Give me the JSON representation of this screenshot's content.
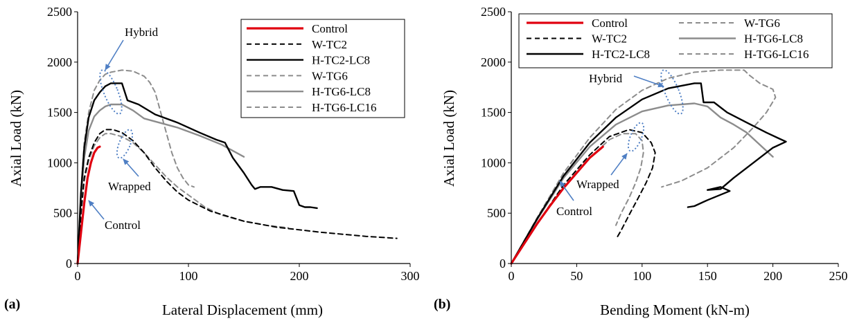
{
  "chart_data": [
    {
      "type": "line",
      "panel_label": "(a)",
      "xlabel": "Lateral Displacement (mm)",
      "ylabel": "Axial Load (kN)",
      "xlim": [
        0,
        300
      ],
      "ylim": [
        0,
        2500
      ],
      "xticks": [
        0,
        100,
        200,
        300
      ],
      "yticks": [
        0,
        500,
        1000,
        1500,
        2000,
        2500
      ],
      "grid": false,
      "legend_placement": "top-right",
      "series": [
        {
          "name": "Control",
          "color": "#e0000f",
          "dash": "solid",
          "width": 3.2,
          "points": [
            [
              0,
              0
            ],
            [
              3,
              300
            ],
            [
              6,
              600
            ],
            [
              9,
              850
            ],
            [
              12,
              1000
            ],
            [
              15,
              1100
            ],
            [
              18,
              1150
            ],
            [
              20,
              1160
            ]
          ]
        },
        {
          "name": "W-TC2",
          "color": "#000000",
          "dash": "dashed",
          "width": 2,
          "points": [
            [
              0,
              0
            ],
            [
              3,
              500
            ],
            [
              6,
              850
            ],
            [
              10,
              1050
            ],
            [
              15,
              1200
            ],
            [
              20,
              1290
            ],
            [
              25,
              1330
            ],
            [
              32,
              1330
            ],
            [
              40,
              1300
            ],
            [
              50,
              1220
            ],
            [
              60,
              1100
            ],
            [
              70,
              950
            ],
            [
              80,
              820
            ],
            [
              90,
              710
            ],
            [
              100,
              630
            ],
            [
              120,
              520
            ],
            [
              150,
              420
            ],
            [
              180,
              360
            ],
            [
              220,
              310
            ],
            [
              260,
              270
            ],
            [
              288,
              250
            ]
          ]
        },
        {
          "name": "H-TC2-LC8",
          "color": "#000000",
          "dash": "solid",
          "width": 2.4,
          "points": [
            [
              0,
              0
            ],
            [
              3,
              700
            ],
            [
              6,
              1150
            ],
            [
              10,
              1450
            ],
            [
              15,
              1620
            ],
            [
              20,
              1700
            ],
            [
              25,
              1760
            ],
            [
              30,
              1790
            ],
            [
              40,
              1790
            ],
            [
              45,
              1620
            ],
            [
              55,
              1580
            ],
            [
              70,
              1480
            ],
            [
              90,
              1400
            ],
            [
              110,
              1300
            ],
            [
              125,
              1230
            ],
            [
              133,
              1200
            ],
            [
              140,
              1050
            ],
            [
              150,
              900
            ],
            [
              157,
              780
            ],
            [
              160,
              740
            ],
            [
              165,
              760
            ],
            [
              175,
              760
            ],
            [
              185,
              730
            ],
            [
              195,
              720
            ],
            [
              200,
              580
            ],
            [
              205,
              560
            ],
            [
              210,
              560
            ],
            [
              216,
              550
            ]
          ]
        },
        {
          "name": "W-TG6",
          "color": "#8c8c8c",
          "dash": "dashed",
          "width": 2,
          "points": [
            [
              0,
              0
            ],
            [
              3,
              480
            ],
            [
              6,
              820
            ],
            [
              10,
              1020
            ],
            [
              15,
              1170
            ],
            [
              20,
              1250
            ],
            [
              25,
              1290
            ],
            [
              30,
              1290
            ],
            [
              40,
              1260
            ],
            [
              50,
              1200
            ],
            [
              60,
              1100
            ],
            [
              70,
              980
            ],
            [
              80,
              860
            ],
            [
              90,
              760
            ],
            [
              100,
              680
            ],
            [
              115,
              560
            ],
            [
              130,
              480
            ],
            [
              150,
              420
            ],
            [
              170,
              380
            ],
            [
              190,
              355
            ]
          ]
        },
        {
          "name": "H-TG6-LC8",
          "color": "#8c8c8c",
          "dash": "solid",
          "width": 2.4,
          "points": [
            [
              0,
              0
            ],
            [
              3,
              650
            ],
            [
              6,
              1050
            ],
            [
              10,
              1320
            ],
            [
              15,
              1460
            ],
            [
              20,
              1520
            ],
            [
              25,
              1560
            ],
            [
              30,
              1580
            ],
            [
              40,
              1580
            ],
            [
              50,
              1520
            ],
            [
              60,
              1440
            ],
            [
              70,
              1410
            ],
            [
              90,
              1350
            ],
            [
              110,
              1270
            ],
            [
              130,
              1180
            ],
            [
              150,
              1060
            ]
          ]
        },
        {
          "name": "H-TG6-LC16",
          "color": "#8c8c8c",
          "dash": "dashed",
          "width": 2,
          "points": [
            [
              0,
              0
            ],
            [
              3,
              700
            ],
            [
              6,
              1200
            ],
            [
              10,
              1500
            ],
            [
              15,
              1720
            ],
            [
              20,
              1820
            ],
            [
              25,
              1880
            ],
            [
              30,
              1900
            ],
            [
              40,
              1920
            ],
            [
              50,
              1910
            ],
            [
              60,
              1860
            ],
            [
              65,
              1800
            ],
            [
              70,
              1700
            ],
            [
              75,
              1500
            ],
            [
              80,
              1300
            ],
            [
              85,
              1100
            ],
            [
              90,
              950
            ],
            [
              95,
              850
            ],
            [
              100,
              780
            ],
            [
              105,
              760
            ]
          ]
        }
      ]
    },
    {
      "type": "line",
      "panel_label": "(b)",
      "xlabel": "Bending Moment (kN-m)",
      "ylabel": "Axial Load (kN)",
      "xlim": [
        0,
        250
      ],
      "ylim": [
        0,
        2500
      ],
      "xticks": [
        0,
        50,
        100,
        150,
        200,
        250
      ],
      "yticks": [
        0,
        500,
        1000,
        1500,
        2000,
        2500
      ],
      "grid": false,
      "legend_placement": "top-left",
      "series": [
        {
          "name": "Control",
          "color": "#e0000f",
          "dash": "solid",
          "width": 3.2,
          "points": [
            [
              0,
              0
            ],
            [
              10,
              200
            ],
            [
              20,
              400
            ],
            [
              30,
              580
            ],
            [
              40,
              750
            ],
            [
              50,
              900
            ],
            [
              60,
              1050
            ],
            [
              70,
              1160
            ]
          ]
        },
        {
          "name": "W-TC2",
          "color": "#000000",
          "dash": "dashed",
          "width": 2,
          "points": [
            [
              0,
              0
            ],
            [
              20,
              400
            ],
            [
              40,
              780
            ],
            [
              60,
              1080
            ],
            [
              75,
              1260
            ],
            [
              90,
              1330
            ],
            [
              100,
              1300
            ],
            [
              107,
              1200
            ],
            [
              110,
              1100
            ],
            [
              108,
              950
            ],
            [
              103,
              800
            ],
            [
              97,
              650
            ],
            [
              90,
              480
            ],
            [
              84,
              330
            ],
            [
              80,
              240
            ]
          ]
        },
        {
          "name": "H-TC2-LC8",
          "color": "#000000",
          "dash": "solid",
          "width": 2.4,
          "points": [
            [
              0,
              0
            ],
            [
              20,
              450
            ],
            [
              40,
              870
            ],
            [
              60,
              1200
            ],
            [
              80,
              1450
            ],
            [
              100,
              1630
            ],
            [
              120,
              1740
            ],
            [
              140,
              1790
            ],
            [
              145,
              1790
            ],
            [
              147,
              1600
            ],
            [
              155,
              1600
            ],
            [
              165,
              1500
            ],
            [
              180,
              1400
            ],
            [
              195,
              1300
            ],
            [
              205,
              1240
            ],
            [
              210,
              1210
            ],
            [
              200,
              1150
            ],
            [
              185,
              1000
            ],
            [
              170,
              850
            ],
            [
              160,
              740
            ],
            [
              150,
              730
            ],
            [
              160,
              760
            ],
            [
              167,
              720
            ],
            [
              150,
              630
            ],
            [
              140,
              570
            ],
            [
              135,
              560
            ]
          ]
        },
        {
          "name": "W-TG6",
          "color": "#8c8c8c",
          "dash": "dashed",
          "width": 2,
          "points": [
            [
              0,
              0
            ],
            [
              20,
              400
            ],
            [
              40,
              760
            ],
            [
              60,
              1050
            ],
            [
              75,
              1230
            ],
            [
              85,
              1290
            ],
            [
              95,
              1290
            ],
            [
              100,
              1220
            ],
            [
              101,
              1100
            ],
            [
              99,
              950
            ],
            [
              95,
              800
            ],
            [
              90,
              650
            ],
            [
              84,
              500
            ],
            [
              80,
              380
            ]
          ]
        },
        {
          "name": "H-TG6-LC8",
          "color": "#8c8c8c",
          "dash": "solid",
          "width": 2.4,
          "points": [
            [
              0,
              0
            ],
            [
              20,
              440
            ],
            [
              40,
              850
            ],
            [
              60,
              1160
            ],
            [
              80,
              1380
            ],
            [
              100,
              1510
            ],
            [
              120,
              1570
            ],
            [
              140,
              1590
            ],
            [
              150,
              1560
            ],
            [
              160,
              1450
            ],
            [
              170,
              1380
            ],
            [
              180,
              1300
            ],
            [
              190,
              1180
            ],
            [
              200,
              1060
            ]
          ]
        },
        {
          "name": "H-TG6-LC16",
          "color": "#8c8c8c",
          "dash": "dashed",
          "width": 2,
          "points": [
            [
              0,
              0
            ],
            [
              20,
              460
            ],
            [
              40,
              900
            ],
            [
              60,
              1250
            ],
            [
              80,
              1530
            ],
            [
              100,
              1720
            ],
            [
              120,
              1840
            ],
            [
              140,
              1900
            ],
            [
              160,
              1920
            ],
            [
              178,
              1920
            ],
            [
              182,
              1870
            ],
            [
              190,
              1790
            ],
            [
              200,
              1730
            ],
            [
              202,
              1650
            ],
            [
              195,
              1500
            ],
            [
              185,
              1350
            ],
            [
              170,
              1150
            ],
            [
              150,
              950
            ],
            [
              130,
              820
            ],
            [
              115,
              760
            ]
          ]
        }
      ],
      "annotations": []
    }
  ],
  "annotations_a": {
    "hybrid": "Hybrid",
    "wrapped": "Wrapped",
    "control": "Control"
  },
  "annotations_b": {
    "hybrid": "Hybrid",
    "wrapped": "Wrapped",
    "control": "Control"
  }
}
